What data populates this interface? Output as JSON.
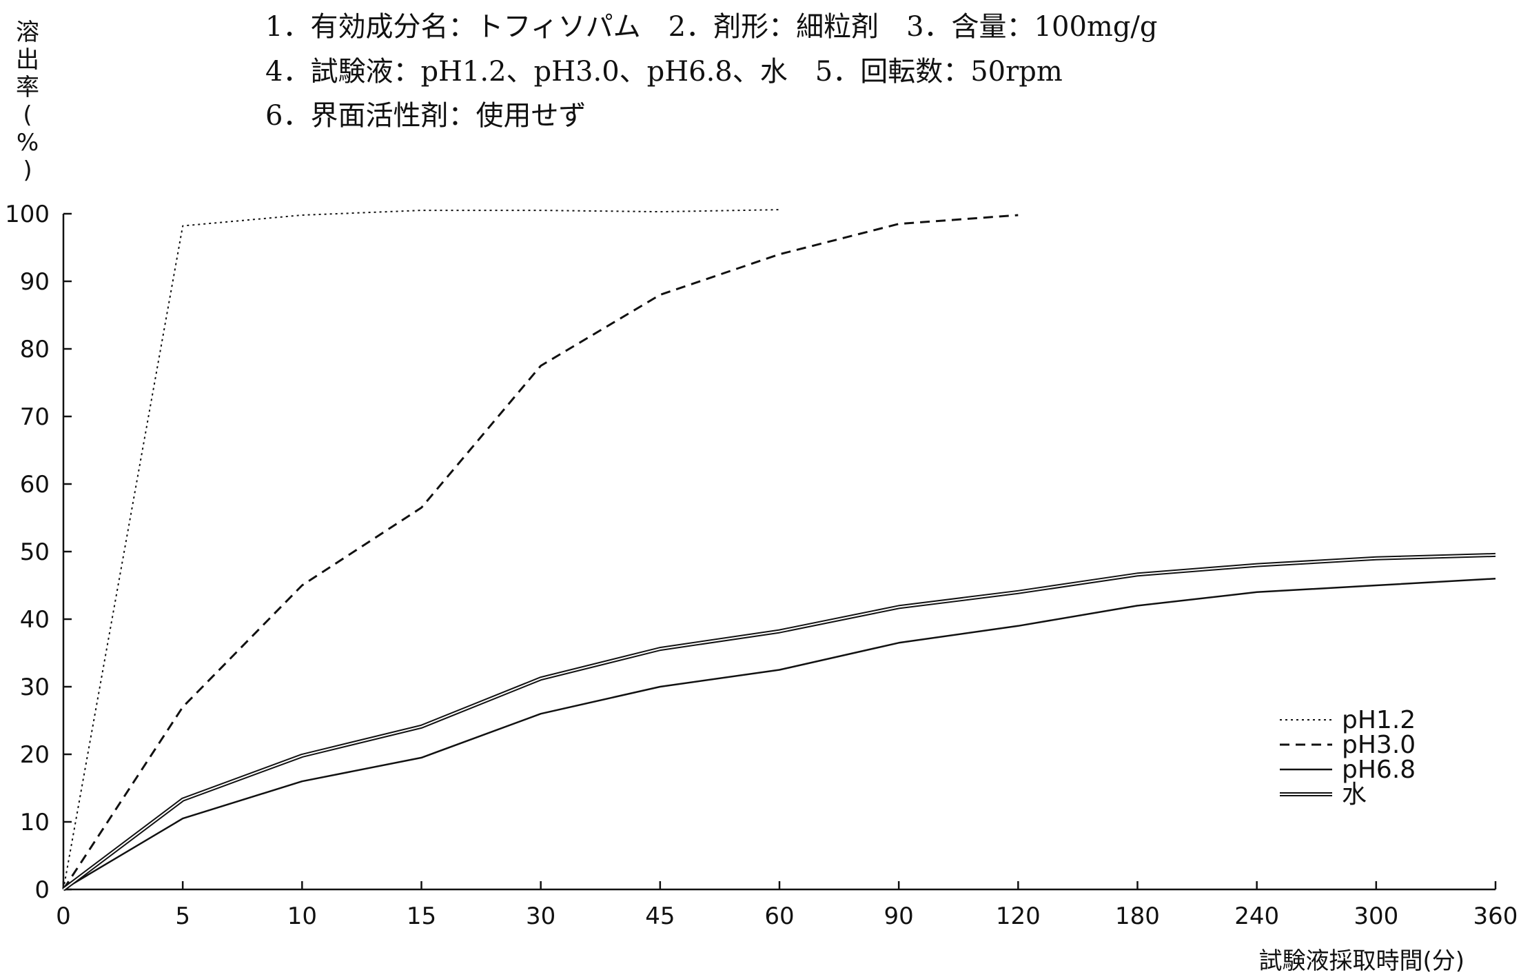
{
  "header": {
    "line1": "1．有効成分名：トフィソパム　2．剤形：細粒剤　3．含量：100mg/g",
    "line2": "4．試験液：pH1.2、pH3.0、pH6.8、水　5．回転数：50rpm",
    "line3": "6．界面活性剤：使用せず"
  },
  "chart_data": {
    "type": "line",
    "title": "",
    "xlabel": "試験液採取時間(分)",
    "ylabel": "溶出率(%)",
    "x_ticks": [
      "0",
      "5",
      "10",
      "15",
      "30",
      "45",
      "60",
      "90",
      "120",
      "180",
      "240",
      "300",
      "360"
    ],
    "y_ticks": [
      "0",
      "10",
      "20",
      "30",
      "40",
      "50",
      "60",
      "70",
      "80",
      "90",
      "100"
    ],
    "ylim": [
      0,
      100
    ],
    "x_scale": "categorical (equally spaced sampling times)",
    "grid": false,
    "legend_position": "lower-right",
    "series": [
      {
        "name": "pH1.2",
        "style": "dotted",
        "x": [
          "0",
          "5",
          "10",
          "15",
          "30",
          "45",
          "60"
        ],
        "values": [
          0,
          98.2,
          99.8,
          100.5,
          100.5,
          100.3,
          100.6
        ]
      },
      {
        "name": "pH3.0",
        "style": "dashed",
        "x": [
          "0",
          "5",
          "10",
          "15",
          "30",
          "45",
          "60",
          "90",
          "120"
        ],
        "values": [
          0,
          27.0,
          45.0,
          56.5,
          77.5,
          88.0,
          94.0,
          98.5,
          99.8
        ]
      },
      {
        "name": "pH6.8",
        "style": "solid",
        "x": [
          "0",
          "5",
          "10",
          "15",
          "30",
          "45",
          "60",
          "90",
          "120",
          "180",
          "240",
          "300",
          "360"
        ],
        "values": [
          0,
          10.5,
          16.0,
          19.5,
          26.0,
          30.0,
          32.5,
          36.5,
          39.0,
          42.0,
          44.0,
          45.0,
          46.0
        ]
      },
      {
        "name": "水",
        "style": "double",
        "x": [
          "0",
          "5",
          "10",
          "15",
          "30",
          "45",
          "60",
          "90",
          "120",
          "180",
          "240",
          "300",
          "360"
        ],
        "values": [
          0,
          13.3,
          19.8,
          24.1,
          31.2,
          35.6,
          38.2,
          41.8,
          44.0,
          46.6,
          48.0,
          49.0,
          49.5
        ]
      }
    ],
    "colors": {
      "line": "#111111"
    }
  }
}
